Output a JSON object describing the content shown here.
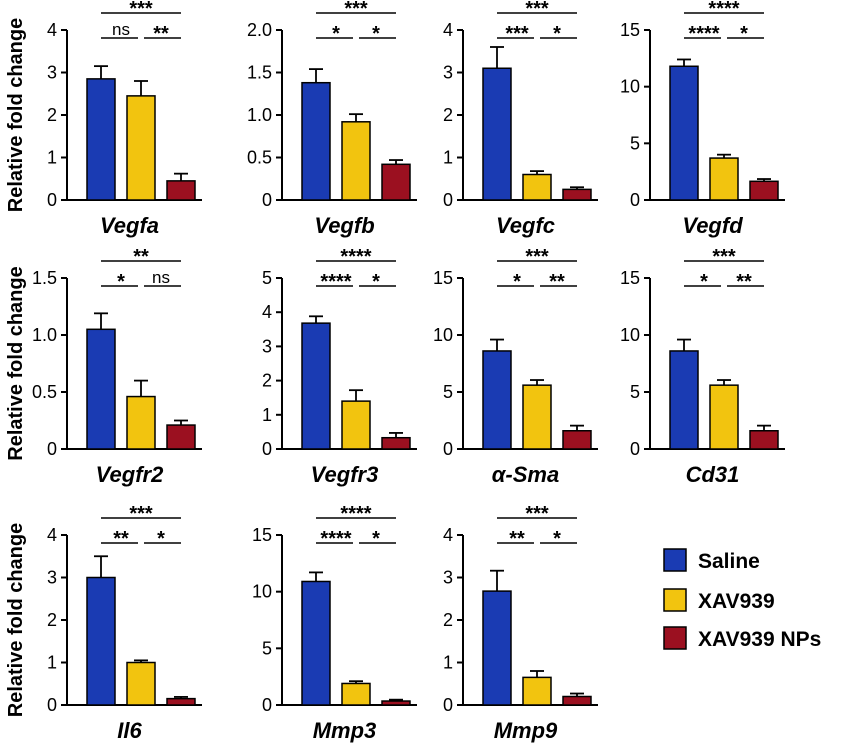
{
  "ylabel": "Relative fold change",
  "colors": {
    "saline": "#1a3bb3",
    "xav939": "#f2c40f",
    "xav939_nps": "#9b1020"
  },
  "legend": {
    "position": "right",
    "items": [
      {
        "label": "Saline",
        "color": "#1a3bb3"
      },
      {
        "label": "XAV939",
        "color": "#f2c40f"
      },
      {
        "label": "XAV939 NPs",
        "color": "#9b1020"
      }
    ]
  },
  "chart_data": [
    {
      "type": "bar",
      "gene": "Vegfa",
      "ylabel": "Relative fold change",
      "ylim": [
        0,
        4
      ],
      "yticks": [
        "0",
        "1",
        "2",
        "3",
        "4"
      ],
      "tickvals": [
        0,
        1,
        2,
        3,
        4
      ],
      "categories": [
        "Saline",
        "XAV939",
        "XAV939 NPs"
      ],
      "values": [
        2.85,
        2.45,
        0.45
      ],
      "errors": [
        0.3,
        0.35,
        0.17
      ],
      "sig": {
        "top": "***",
        "left": "ns",
        "right": "**"
      }
    },
    {
      "type": "bar",
      "gene": "Vegfb",
      "ylabel": "",
      "ylim": [
        0,
        2
      ],
      "yticks": [
        "0",
        "0.5",
        "1.0",
        "1.5",
        "2.0"
      ],
      "tickvals": [
        0,
        0.5,
        1,
        1.5,
        2
      ],
      "categories": [
        "Saline",
        "XAV939",
        "XAV939 NPs"
      ],
      "values": [
        1.38,
        0.92,
        0.42
      ],
      "errors": [
        0.16,
        0.09,
        0.05
      ],
      "sig": {
        "top": "***",
        "left": "*",
        "right": "*"
      }
    },
    {
      "type": "bar",
      "gene": "Vegfc",
      "ylabel": "",
      "ylim": [
        0,
        4
      ],
      "yticks": [
        "0",
        "1",
        "2",
        "3",
        "4"
      ],
      "tickvals": [
        0,
        1,
        2,
        3,
        4
      ],
      "categories": [
        "Saline",
        "XAV939",
        "XAV939 NPs"
      ],
      "values": [
        3.1,
        0.6,
        0.25
      ],
      "errors": [
        0.5,
        0.08,
        0.05
      ],
      "sig": {
        "top": "***",
        "left": "***",
        "right": "*"
      }
    },
    {
      "type": "bar",
      "gene": "Vegfd",
      "ylabel": "",
      "ylim": [
        0,
        15
      ],
      "yticks": [
        "0",
        "5",
        "10",
        "15"
      ],
      "tickvals": [
        0,
        5,
        10,
        15
      ],
      "categories": [
        "Saline",
        "XAV939",
        "XAV939 NPs"
      ],
      "values": [
        11.8,
        3.7,
        1.65
      ],
      "errors": [
        0.6,
        0.3,
        0.2
      ],
      "sig": {
        "top": "****",
        "left": "****",
        "right": "*"
      }
    },
    {
      "type": "bar",
      "gene": "Vegfr2",
      "ylabel": "Relative fold change",
      "ylim": [
        0,
        1.5
      ],
      "yticks": [
        "0",
        "0.5",
        "1.0",
        "1.5"
      ],
      "tickvals": [
        0,
        0.5,
        1,
        1.5
      ],
      "categories": [
        "Saline",
        "XAV939",
        "XAV939 NPs"
      ],
      "values": [
        1.05,
        0.46,
        0.21
      ],
      "errors": [
        0.14,
        0.14,
        0.04
      ],
      "sig": {
        "top": "**",
        "left": "*",
        "right": "ns"
      }
    },
    {
      "type": "bar",
      "gene": "Vegfr3",
      "ylabel": "",
      "ylim": [
        0,
        5
      ],
      "yticks": [
        "0",
        "1",
        "2",
        "3",
        "4",
        "5"
      ],
      "tickvals": [
        0,
        1,
        2,
        3,
        4,
        5
      ],
      "categories": [
        "Saline",
        "XAV939",
        "XAV939 NPs"
      ],
      "values": [
        3.68,
        1.4,
        0.33
      ],
      "errors": [
        0.2,
        0.32,
        0.14
      ],
      "sig": {
        "top": "****",
        "left": "****",
        "right": "*"
      }
    },
    {
      "type": "bar",
      "gene": "α-Sma",
      "ylabel": "",
      "ylim": [
        0,
        15
      ],
      "yticks": [
        "0",
        "5",
        "10",
        "15"
      ],
      "tickvals": [
        0,
        5,
        10,
        15
      ],
      "categories": [
        "Saline",
        "XAV939",
        "XAV939 NPs"
      ],
      "values": [
        8.6,
        5.6,
        1.6
      ],
      "errors": [
        1.0,
        0.45,
        0.45
      ],
      "sig": {
        "top": "***",
        "left": "*",
        "right": "**"
      }
    },
    {
      "type": "bar",
      "gene": "Cd31",
      "ylabel": "",
      "ylim": [
        0,
        15
      ],
      "yticks": [
        "0",
        "5",
        "10",
        "15"
      ],
      "tickvals": [
        0,
        5,
        10,
        15
      ],
      "categories": [
        "Saline",
        "XAV939",
        "XAV939 NPs"
      ],
      "values": [
        8.6,
        5.6,
        1.6
      ],
      "errors": [
        1.0,
        0.45,
        0.45
      ],
      "sig": {
        "top": "***",
        "left": "*",
        "right": "**"
      }
    },
    {
      "type": "bar",
      "gene": "Il6",
      "ylabel": "Relative fold change",
      "ylim": [
        0,
        4
      ],
      "yticks": [
        "0",
        "1",
        "2",
        "3",
        "4"
      ],
      "tickvals": [
        0,
        1,
        2,
        3,
        4
      ],
      "categories": [
        "Saline",
        "XAV939",
        "XAV939 NPs"
      ],
      "values": [
        3.0,
        1.0,
        0.15
      ],
      "errors": [
        0.5,
        0.05,
        0.04
      ],
      "sig": {
        "top": "***",
        "left": "**",
        "right": "*"
      }
    },
    {
      "type": "bar",
      "gene": "Mmp3",
      "ylabel": "",
      "ylim": [
        0,
        15
      ],
      "yticks": [
        "0",
        "5",
        "10",
        "15"
      ],
      "tickvals": [
        0,
        5,
        10,
        15
      ],
      "categories": [
        "Saline",
        "XAV939",
        "XAV939 NPs"
      ],
      "values": [
        10.9,
        1.9,
        0.35
      ],
      "errors": [
        0.8,
        0.2,
        0.12
      ],
      "sig": {
        "top": "****",
        "left": "****",
        "right": "*"
      }
    },
    {
      "type": "bar",
      "gene": "Mmp9",
      "ylabel": "",
      "ylim": [
        0,
        4
      ],
      "yticks": [
        "0",
        "1",
        "2",
        "3",
        "4"
      ],
      "tickvals": [
        0,
        1,
        2,
        3,
        4
      ],
      "categories": [
        "Saline",
        "XAV939",
        "XAV939 NPs"
      ],
      "values": [
        2.68,
        0.65,
        0.2
      ],
      "errors": [
        0.48,
        0.15,
        0.07
      ],
      "sig": {
        "top": "***",
        "left": "**",
        "right": "*"
      }
    }
  ]
}
